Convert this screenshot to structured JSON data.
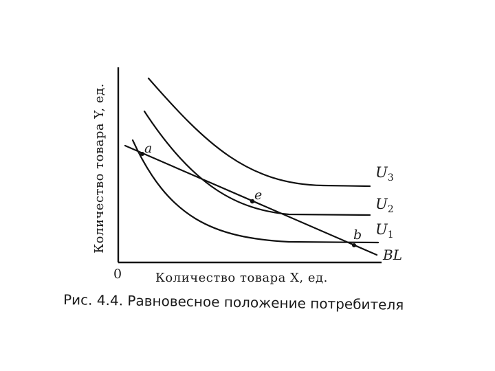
{
  "figure": {
    "axes": {
      "y_label": "Количество товара Y, ед.",
      "x_label": "Количество товара X, ед.",
      "origin": "0"
    },
    "curves": {
      "u3": {
        "label": "U",
        "sub": "3"
      },
      "u2": {
        "label": "U",
        "sub": "2"
      },
      "u1": {
        "label": "U",
        "sub": "1"
      },
      "bl": {
        "label": "BL"
      }
    },
    "points": {
      "a": "a",
      "e": "e",
      "b": "b"
    },
    "caption": "Рис. 4.4. Равновесное положение потребителя"
  }
}
